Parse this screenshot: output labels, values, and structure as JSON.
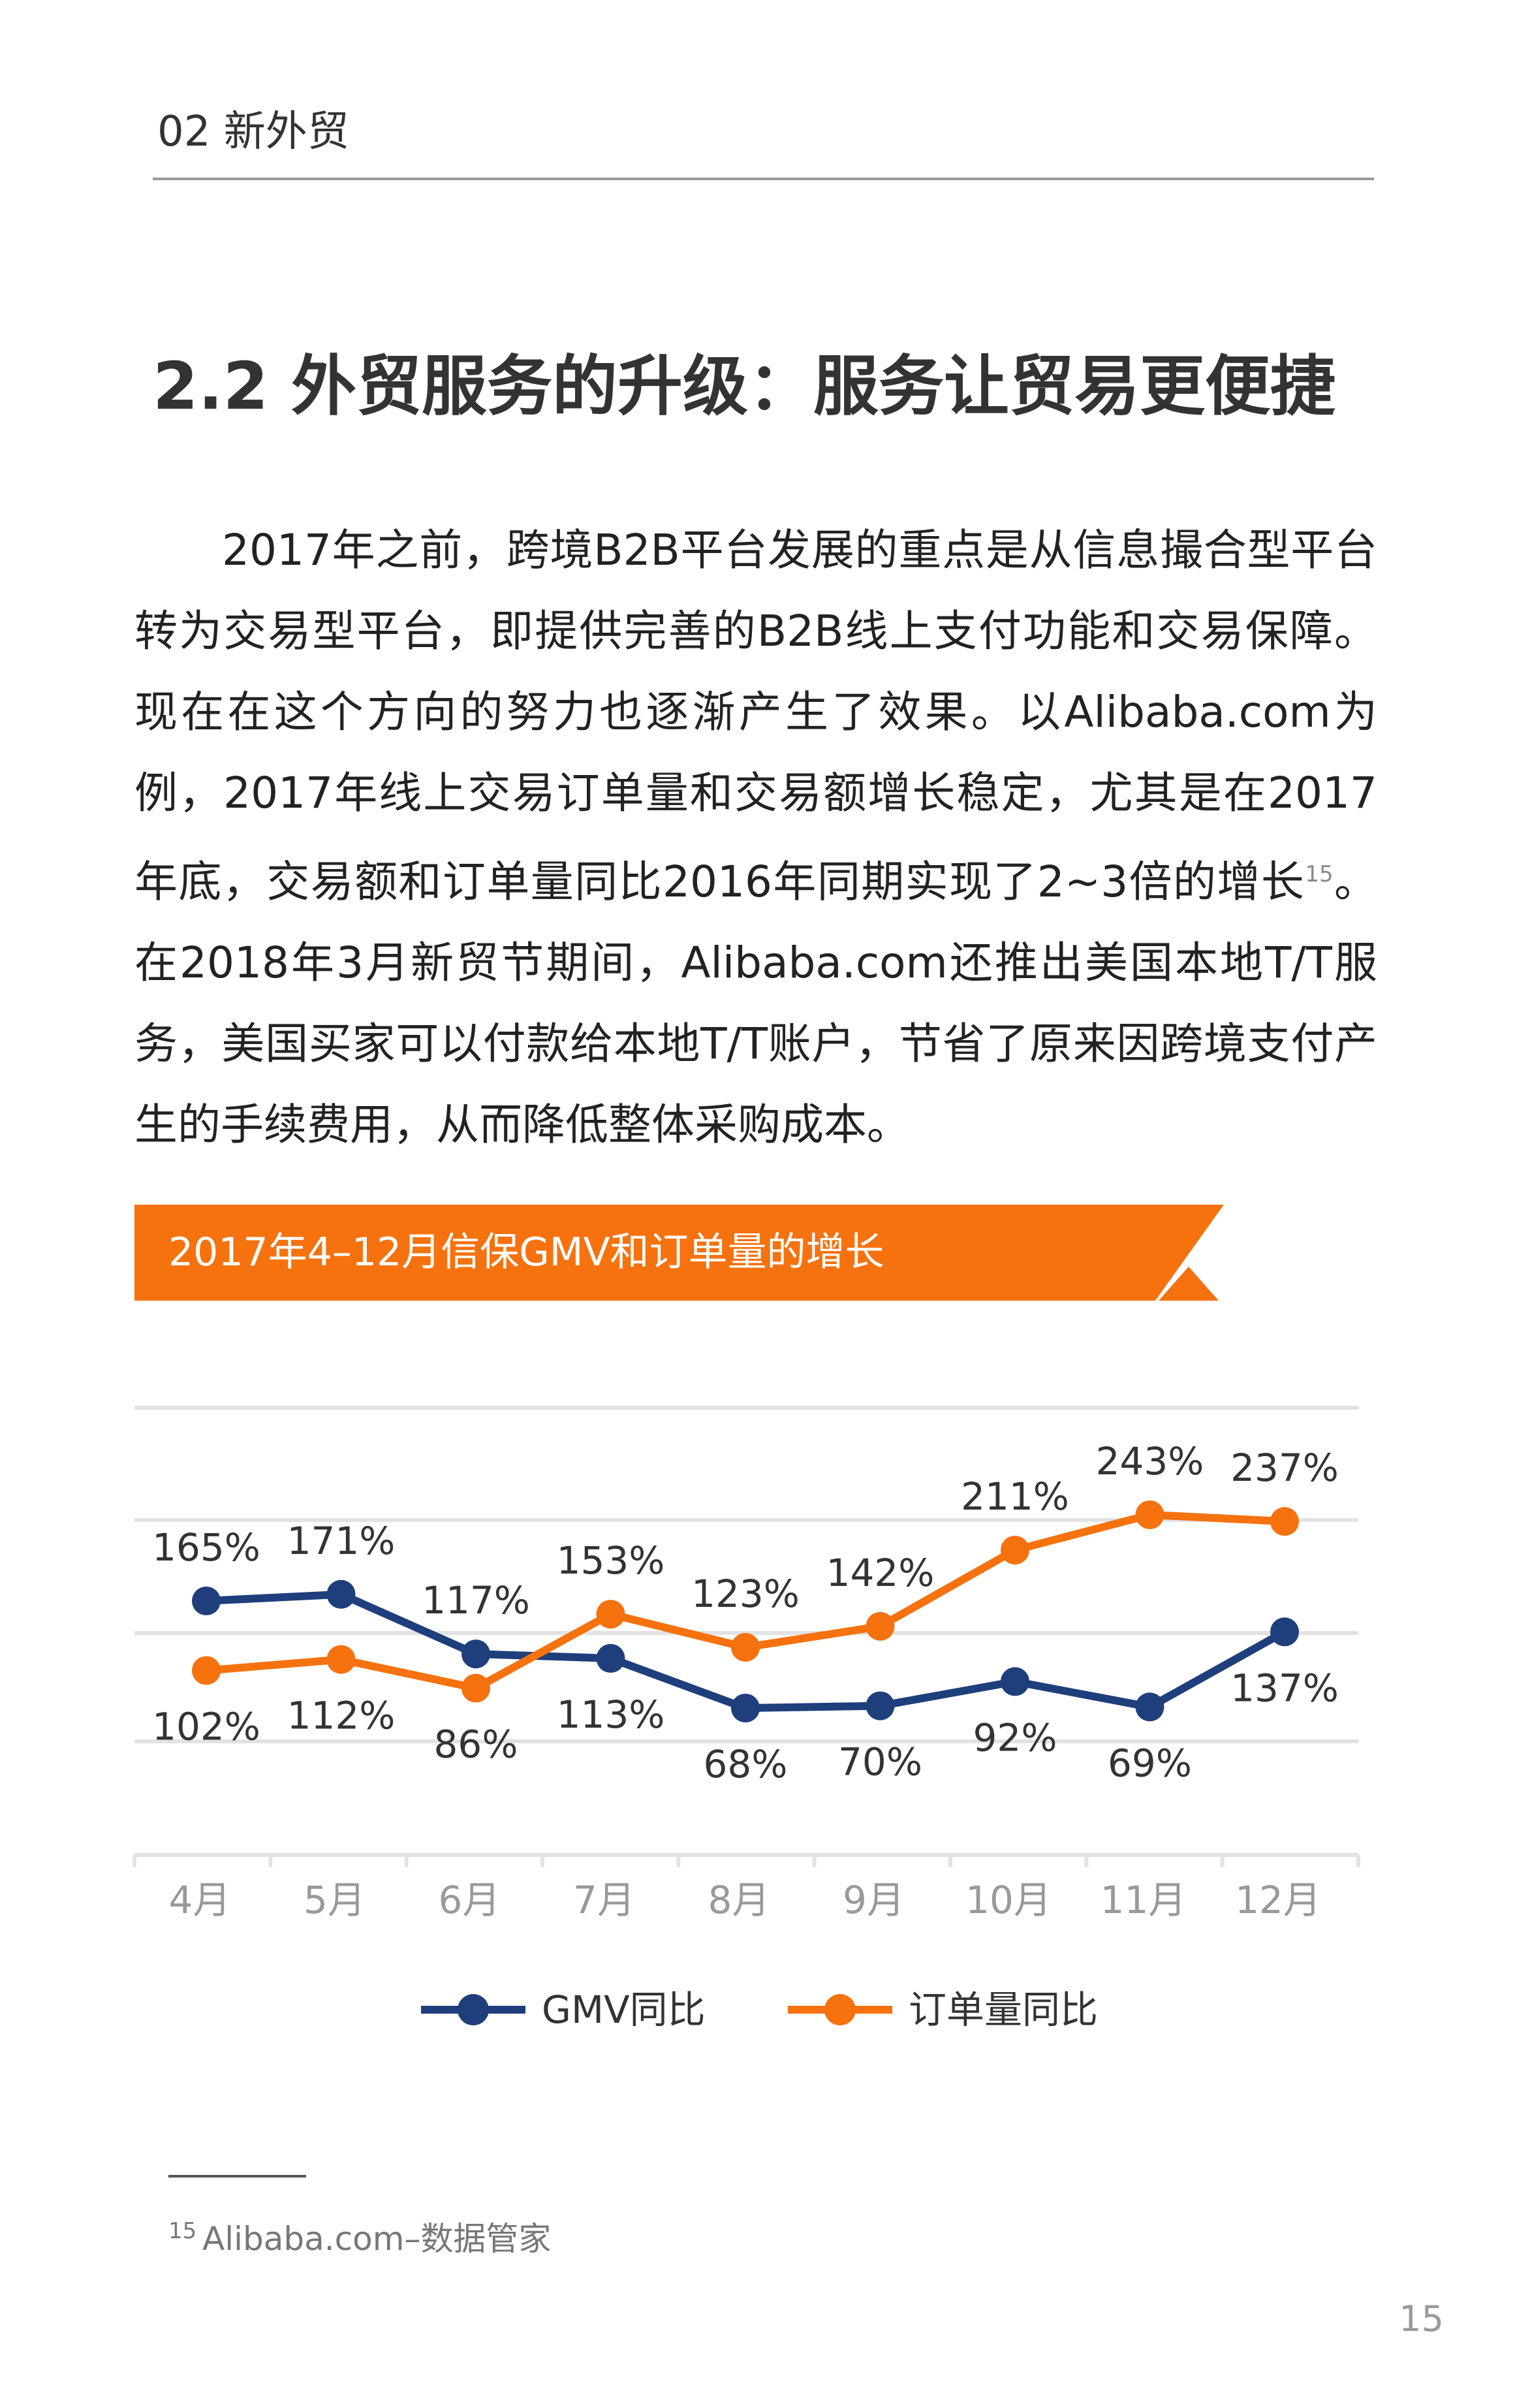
{
  "header": {
    "section": "02 新外贸"
  },
  "heading": "2.2 外贸服务的升级：服务让贸易更便捷",
  "paragraph": {
    "before": "2017年之前，跨境B2B平台发展的重点是从信息撮合型平台转为交易型平台，即提供完善的B2B线上支付功能和交易保障。现在在这个方向的努力也逐渐产生了效果。以Alibaba.com为例，2017年线上交易订单量和交易额增长稳定，尤其是在2017年底，交易额和订单量同比2016年同期实现了2~3倍的增长",
    "note": "15",
    "after": "。在2018年3月新贸节期间，Alibaba.com还推出美国本地T/T服务，美国买家可以付款给本地T/T账户，节省了原来因跨境支付产生的手续费用，从而降低整体采购成本。"
  },
  "chart_data": {
    "type": "line",
    "title": "2017年4–12月信保GMV和订单量的增长",
    "categories": [
      "4月",
      "5月",
      "6月",
      "7月",
      "8月",
      "9月",
      "10月",
      "11月",
      "12月"
    ],
    "series": [
      {
        "name": "GMV同比",
        "color": "#1f3e7c",
        "values": [
          165,
          171,
          117,
          113,
          68,
          70,
          92,
          69,
          137
        ],
        "value_labels": [
          "165%",
          "171%",
          "117%",
          "113%",
          "68%",
          "70%",
          "92%",
          "69%",
          "137%"
        ]
      },
      {
        "name": "订单量同比",
        "color": "#f5720f",
        "values": [
          102,
          112,
          86,
          153,
          123,
          142,
          211,
          243,
          237
        ],
        "value_labels": [
          "102%",
          "112%",
          "86%",
          "153%",
          "123%",
          "142%",
          "211%",
          "243%",
          "237%"
        ]
      }
    ]
  },
  "footnote": {
    "number": "15",
    "text": "Alibaba.com–数据管家"
  },
  "page_number": "15"
}
